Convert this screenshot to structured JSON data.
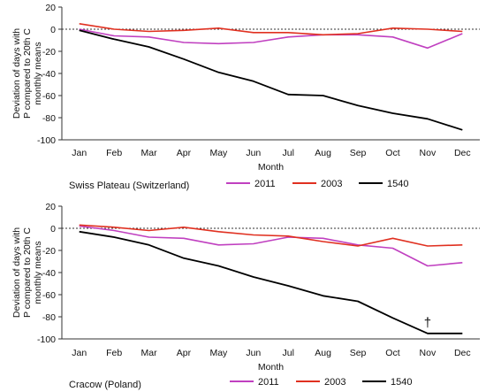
{
  "chart_data": [
    {
      "type": "line",
      "title": "Swiss Plateau (Switzerland)",
      "xlabel": "Month",
      "ylabel": "Deviation of days with P compared to 20th C monthly means",
      "ylabel_lines": [
        "Deviation of days with",
        "P compared to 20th C",
        "monthly means"
      ],
      "categories": [
        "Jan",
        "Feb",
        "Mar",
        "Apr",
        "May",
        "Jun",
        "Jul",
        "Aug",
        "Sep",
        "Oct",
        "Nov",
        "Dec"
      ],
      "yticks": [
        20,
        0,
        -20,
        -40,
        -60,
        -80,
        -100
      ],
      "ylim": [
        -100,
        20
      ],
      "zero_line": "dotted",
      "legend": {
        "placement": "bottom"
      },
      "series": [
        {
          "name": "2011",
          "color": "#c040c0",
          "values": [
            0,
            -6,
            -7,
            -12,
            -13,
            -12,
            -7,
            -5,
            -5,
            -7,
            -17,
            -4
          ]
        },
        {
          "name": "2003",
          "color": "#e03020",
          "values": [
            5,
            0,
            -2,
            -1,
            1,
            -3,
            -3,
            -5,
            -4,
            1,
            0,
            -2
          ]
        },
        {
          "name": "1540",
          "color": "#000000",
          "values": [
            -1,
            -9,
            -16,
            -27,
            -39,
            -47,
            -59,
            -60,
            -69,
            -76,
            -81,
            -91
          ]
        }
      ]
    },
    {
      "type": "line",
      "title": "Cracow (Poland)",
      "xlabel": "Month",
      "ylabel": "Deviation of days with P compared to 20th C monthly means",
      "ylabel_lines": [
        "Deviation of days with",
        "P compared to 20th C",
        "monthly means"
      ],
      "categories": [
        "Jan",
        "Feb",
        "Mar",
        "Apr",
        "May",
        "Jun",
        "Jul",
        "Aug",
        "Sep",
        "Oct",
        "Nov",
        "Dec"
      ],
      "yticks": [
        20,
        0,
        -20,
        -40,
        -60,
        -80,
        -100
      ],
      "ylim": [
        -100,
        20
      ],
      "zero_line": "dotted",
      "legend": {
        "placement": "bottom"
      },
      "annotations": [
        {
          "text": "†",
          "category": "Nov",
          "value": -89
        }
      ],
      "series": [
        {
          "name": "2011",
          "color": "#c040c0",
          "values": [
            2,
            -2,
            -8,
            -9,
            -15,
            -14,
            -8,
            -9,
            -15,
            -18,
            -34,
            -31
          ]
        },
        {
          "name": "2003",
          "color": "#e03020",
          "values": [
            3,
            1,
            -2,
            1,
            -3,
            -6,
            -7,
            -12,
            -16,
            -9,
            -16,
            -15
          ]
        },
        {
          "name": "1540",
          "color": "#000000",
          "values": [
            -3,
            -8,
            -15,
            -27,
            -34,
            -44,
            -52,
            -61,
            -66,
            -81,
            -95,
            -95
          ]
        }
      ]
    }
  ]
}
